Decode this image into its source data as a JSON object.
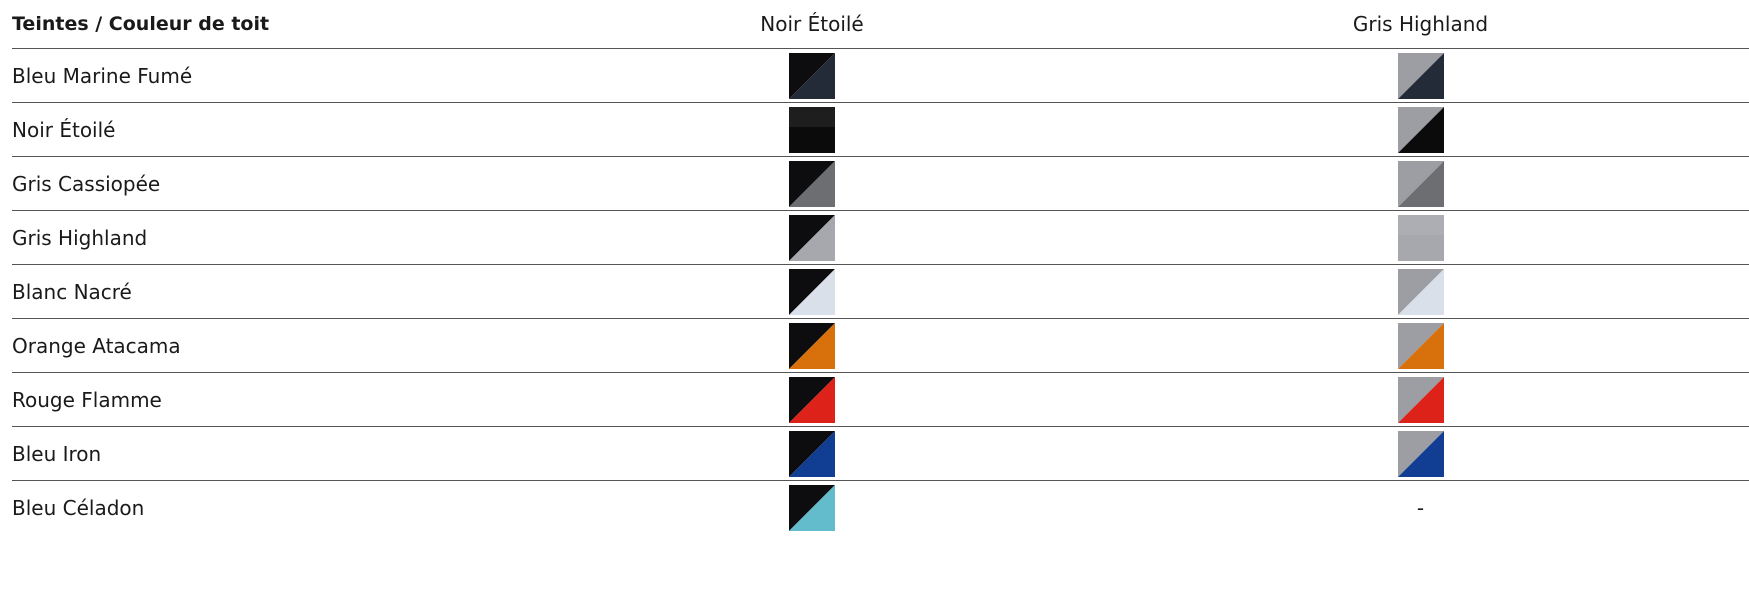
{
  "header": {
    "col1": "Teintes / Couleur de toit",
    "col2": "Noir Étoilé",
    "col3": "Gris Highland"
  },
  "roof_colors": {
    "noir": "#0d0d0f",
    "gris": "#9c9ea4"
  },
  "rows": [
    {
      "label": "Bleu Marine Fumé",
      "color": "#232b38",
      "noir": "combo",
      "gris": "combo"
    },
    {
      "label": "Noir Étoilé",
      "color": "#0b0b0c",
      "noir": "solid",
      "gris": "combo"
    },
    {
      "label": "Gris Cassiopée",
      "color": "#6d6e72",
      "noir": "combo",
      "gris": "combo"
    },
    {
      "label": "Gris Highland",
      "color": "#a6a8ae",
      "noir": "combo",
      "gris": "solid"
    },
    {
      "label": "Blanc Nacré",
      "color": "#d9e0ea",
      "noir": "combo",
      "gris": "combo"
    },
    {
      "label": "Orange Atacama",
      "color": "#d8700c",
      "noir": "combo",
      "gris": "combo"
    },
    {
      "label": "Rouge Flamme",
      "color": "#dc2219",
      "noir": "combo",
      "gris": "combo"
    },
    {
      "label": "Bleu Iron",
      "color": "#113e92",
      "noir": "combo",
      "gris": "combo"
    },
    {
      "label": "Bleu Céladon",
      "color": "#63bccb",
      "noir": "combo",
      "gris": "-"
    }
  ]
}
